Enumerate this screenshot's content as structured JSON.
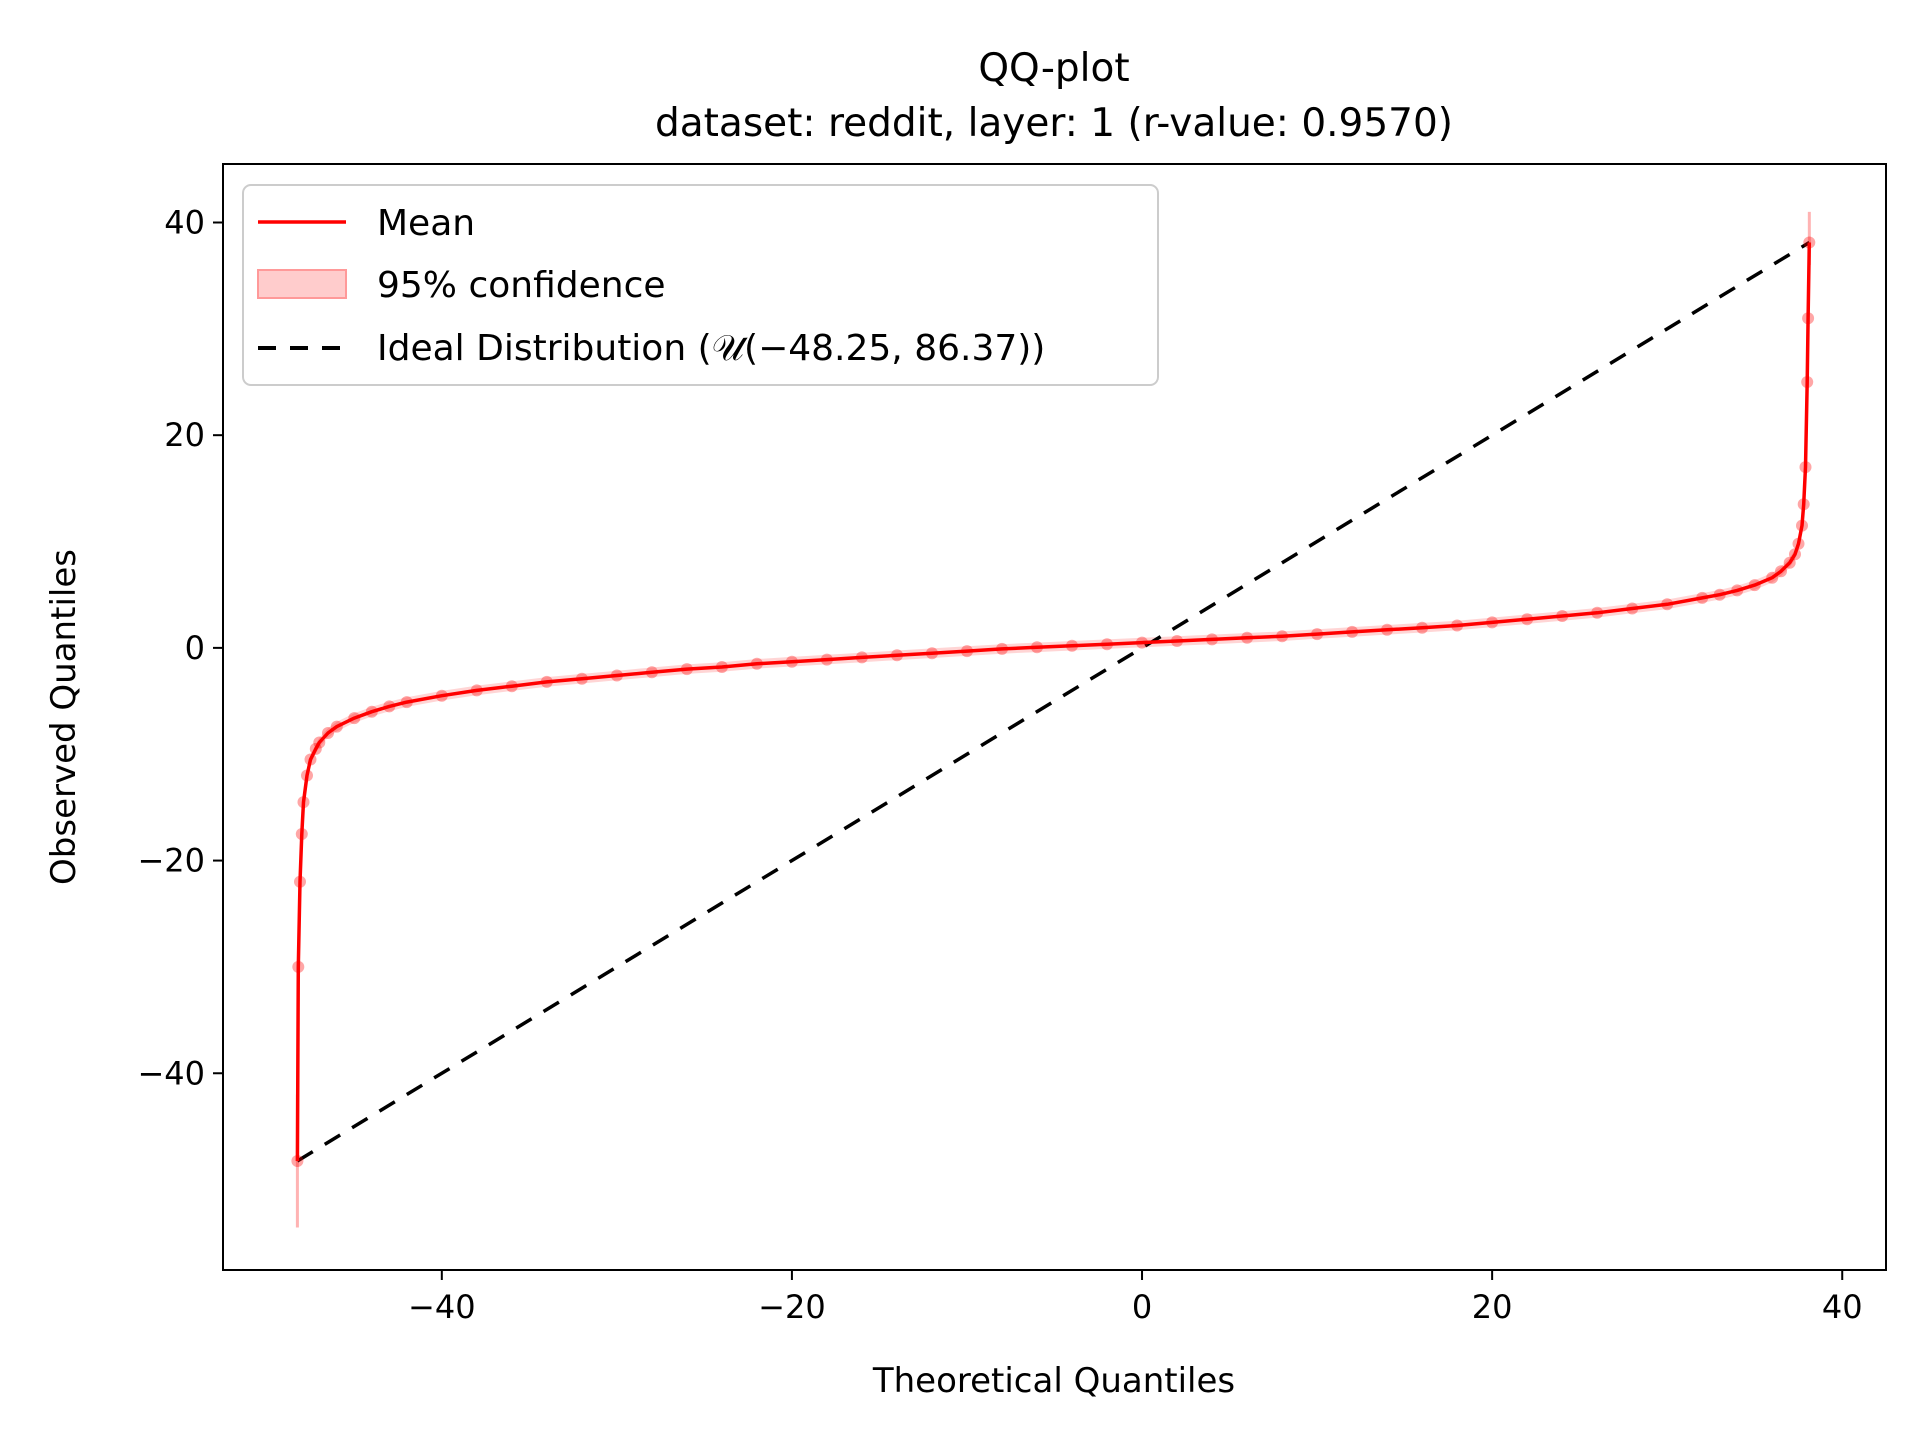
{
  "chart_data": {
    "type": "line",
    "title": "QQ-plot",
    "subtitle": "dataset: reddit, layer: 1 (r-value: 0.9570)",
    "xlabel": "Theoretical Quantiles",
    "ylabel": "Observed Quantiles",
    "xlim": [
      -52.5,
      42.5
    ],
    "ylim": [
      -58.5,
      45.5
    ],
    "xticks": [
      -40,
      -20,
      0,
      20,
      40
    ],
    "yticks": [
      -40,
      -20,
      0,
      20,
      40
    ],
    "xtick_labels": [
      "−40",
      "−20",
      "0",
      "20",
      "40"
    ],
    "ytick_labels": [
      "−40",
      "−20",
      "0",
      "20",
      "40"
    ],
    "grid": false,
    "legend_position": "top-left",
    "legend": [
      {
        "label": "Mean",
        "style": "line",
        "color": "#ff0000"
      },
      {
        "label": "95% confidence",
        "style": "band",
        "color": "#ffcccc"
      },
      {
        "label": "Ideal Distribution (𝒰(−48.25, 86.37))",
        "style": "dashed",
        "color": "#000000"
      }
    ],
    "colors": {
      "mean": "#ff0000",
      "confidence": "#ffb3b3",
      "ideal": "#000000"
    },
    "series": [
      {
        "name": "Mean",
        "x": [
          -48.25,
          -48.2,
          -48.1,
          -48.0,
          -47.9,
          -47.7,
          -47.5,
          -47.2,
          -47.0,
          -46.5,
          -46.0,
          -45.0,
          -44.0,
          -43.0,
          -42.0,
          -40.0,
          -38.0,
          -36.0,
          -34.0,
          -32.0,
          -30.0,
          -28.0,
          -26.0,
          -24.0,
          -22.0,
          -20.0,
          -18.0,
          -16.0,
          -14.0,
          -12.0,
          -10.0,
          -8.0,
          -6.0,
          -4.0,
          -2.0,
          0.0,
          2.0,
          4.0,
          6.0,
          8.0,
          10.0,
          12.0,
          14.0,
          16.0,
          18.0,
          20.0,
          22.0,
          24.0,
          26.0,
          28.0,
          30.0,
          32.0,
          33.0,
          34.0,
          35.0,
          36.0,
          36.5,
          37.0,
          37.3,
          37.5,
          37.7,
          37.8,
          37.9,
          38.0,
          38.05,
          38.12
        ],
        "y": [
          -48.25,
          -30.0,
          -22.0,
          -17.5,
          -14.5,
          -12.0,
          -10.5,
          -9.5,
          -8.9,
          -8.0,
          -7.4,
          -6.6,
          -6.0,
          -5.5,
          -5.1,
          -4.5,
          -4.0,
          -3.6,
          -3.2,
          -2.9,
          -2.6,
          -2.3,
          -2.0,
          -1.8,
          -1.5,
          -1.3,
          -1.1,
          -0.9,
          -0.7,
          -0.5,
          -0.3,
          -0.1,
          0.05,
          0.2,
          0.35,
          0.5,
          0.65,
          0.8,
          0.95,
          1.1,
          1.3,
          1.5,
          1.7,
          1.9,
          2.1,
          2.4,
          2.7,
          3.0,
          3.3,
          3.7,
          4.1,
          4.7,
          5.0,
          5.4,
          5.9,
          6.6,
          7.2,
          8.0,
          8.8,
          9.8,
          11.5,
          13.5,
          17.0,
          25.0,
          31.0,
          38.12
        ]
      },
      {
        "name": "Ideal Distribution (𝒰(−48.25, 86.37))",
        "x": [
          -48.25,
          38.12
        ],
        "y": [
          -48.25,
          38.12
        ]
      }
    ],
    "confidence_band_tails": {
      "x_low": -48.25,
      "y_low_range": [
        -54.5,
        -42.0
      ],
      "x_high": 38.12,
      "y_high_range": [
        36.0,
        41.0
      ]
    }
  }
}
